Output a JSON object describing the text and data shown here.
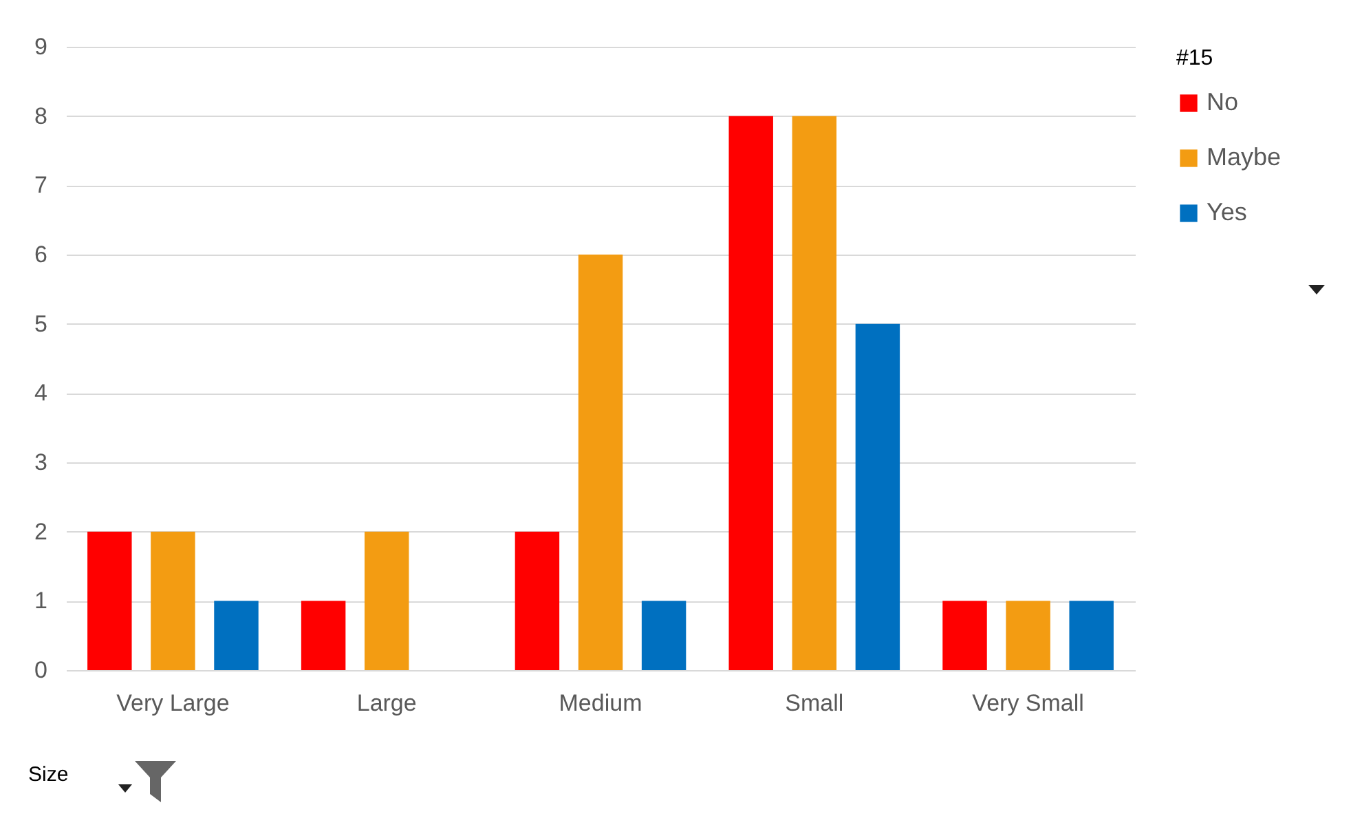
{
  "chart_data": {
    "type": "bar",
    "categories": [
      "Very Large",
      "Large",
      "Medium",
      "Small",
      "Very Small"
    ],
    "series": [
      {
        "name": "No",
        "color": "#ff0000",
        "values": [
          2,
          1,
          2,
          8,
          1
        ]
      },
      {
        "name": "Maybe",
        "color": "#f39c12",
        "values": [
          2,
          2,
          6,
          8,
          1
        ]
      },
      {
        "name": "Yes",
        "color": "#0070c0",
        "values": [
          1,
          null,
          1,
          5,
          1
        ]
      }
    ],
    "xlabel": "Size",
    "legend_title": "#15",
    "ylim": [
      0,
      9
    ],
    "yticks": [
      0,
      1,
      2,
      3,
      4,
      5,
      6,
      7,
      8,
      9
    ],
    "grid": "y",
    "legend": "right"
  }
}
